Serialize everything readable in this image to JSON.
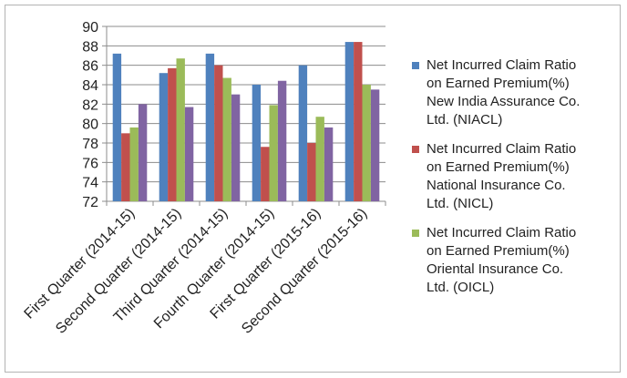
{
  "chart_data": {
    "type": "bar",
    "title": "",
    "xlabel": "",
    "ylabel": "",
    "ylim": [
      72,
      90
    ],
    "ytick_step": 2,
    "grid": true,
    "legend_position": "right",
    "categories": [
      "First Quarter (2014-15)",
      "Second Quarter (2014-15)",
      "Third Quarter (2014-15)",
      "Fourth Quarter (2014-15)",
      "First Quarter (2015-16)",
      "Second Quarter (2015-16)"
    ],
    "series": [
      {
        "name": "Net Incurred Claim Ratio on Earned Premium(%) New India Assurance Co. Ltd. (NIACL)",
        "legend_lines": [
          "Net Incurred Claim Ratio",
          "on Earned Premium(%)",
          "New India Assurance Co.",
          "Ltd. (NIACL)"
        ],
        "color": "#4f81bd",
        "values": [
          87.2,
          85.2,
          87.2,
          84.0,
          86.0,
          88.4
        ]
      },
      {
        "name": "Net Incurred Claim Ratio on Earned Premium(%) National Insurance Co. Ltd. (NICL)",
        "legend_lines": [
          "Net Incurred Claim Ratio",
          "on Earned Premium(%)",
          "National Insurance Co.",
          "Ltd. (NICL)"
        ],
        "color": "#c0504d",
        "values": [
          79.0,
          85.7,
          86.0,
          77.6,
          78.0,
          88.4
        ]
      },
      {
        "name": "Net Incurred Claim Ratio on Earned Premium(%) Oriental Insurance Co. Ltd. (OICL)",
        "legend_lines": [
          "Net Incurred Claim Ratio",
          "on Earned Premium(%)",
          "Oriental Insurance Co.",
          "Ltd. (OICL)"
        ],
        "color": "#9bbb59",
        "values": [
          79.6,
          86.7,
          84.7,
          81.9,
          80.7,
          84.0
        ]
      },
      {
        "name": "",
        "color": "#8064a2",
        "values": [
          82.0,
          81.7,
          83.0,
          84.4,
          79.6,
          83.5
        ]
      }
    ]
  }
}
